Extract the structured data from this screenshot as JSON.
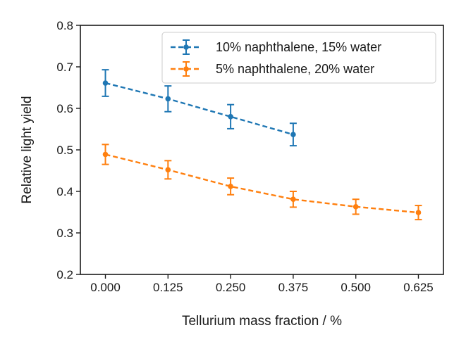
{
  "chart_data": {
    "type": "line",
    "title": "",
    "xlabel": "Tellurium mass fraction / %",
    "ylabel": "Relative light yield",
    "xlim": [
      -0.05,
      0.675
    ],
    "ylim": [
      0.2,
      0.8
    ],
    "xticks": [
      0.0,
      0.125,
      0.25,
      0.375,
      0.5,
      0.625
    ],
    "xtick_labels": [
      "0.000",
      "0.125",
      "0.250",
      "0.375",
      "0.500",
      "0.625"
    ],
    "yticks": [
      0.2,
      0.3,
      0.4,
      0.5,
      0.6,
      0.7,
      0.8
    ],
    "ytick_labels": [
      "0.2",
      "0.3",
      "0.4",
      "0.5",
      "0.6",
      "0.7",
      "0.8"
    ],
    "grid": false,
    "legend_position": "top-right",
    "series": [
      {
        "name": "10% naphthalene, 15% water",
        "color": "#1f77b4",
        "line_style": "dashed",
        "x": [
          0.0,
          0.125,
          0.25,
          0.375
        ],
        "y": [
          0.661,
          0.623,
          0.58,
          0.537
        ],
        "yerr": [
          0.032,
          0.031,
          0.029,
          0.027
        ]
      },
      {
        "name": "5% naphthalene, 20% water",
        "color": "#ff7f0e",
        "line_style": "dashed",
        "x": [
          0.0,
          0.125,
          0.25,
          0.375,
          0.5,
          0.625
        ],
        "y": [
          0.489,
          0.452,
          0.412,
          0.381,
          0.363,
          0.349
        ],
        "yerr": [
          0.024,
          0.022,
          0.02,
          0.019,
          0.018,
          0.017
        ]
      }
    ]
  }
}
